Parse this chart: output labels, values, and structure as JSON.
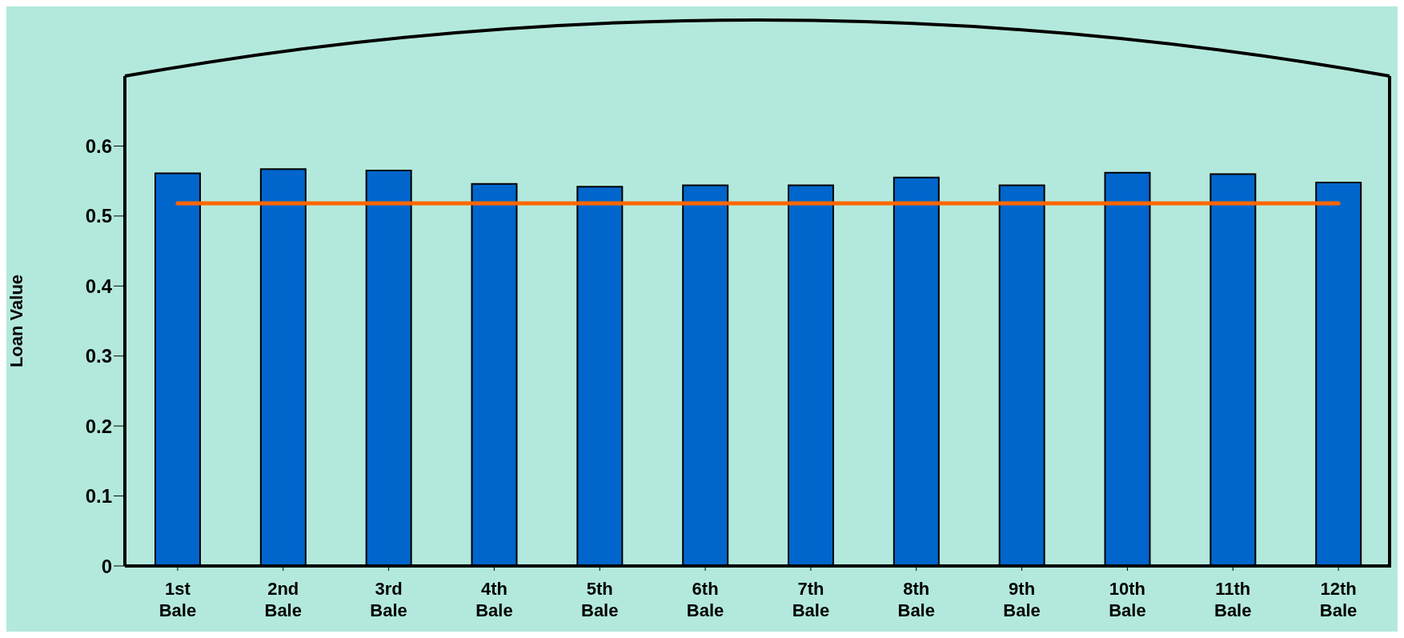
{
  "chart_data": {
    "type": "bar",
    "ylabel": "Loan Value",
    "categories": [
      "1st Bale",
      "2nd Bale",
      "3rd Bale",
      "4th Bale",
      "5th Bale",
      "6th Bale",
      "7th Bale",
      "8th Bale",
      "9th Bale",
      "10th Bale",
      "11th Bale",
      "12th Bale"
    ],
    "series": [
      {
        "color": "#0066cc",
        "values": [
          0.561,
          0.567,
          0.565,
          0.546,
          0.542,
          0.544,
          0.544,
          0.555,
          0.544,
          0.562,
          0.56,
          0.548
        ]
      },
      {
        "type": "line",
        "color": "#ff6600",
        "values": [
          0.518,
          0.518,
          0.518,
          0.518,
          0.518,
          0.518,
          0.518,
          0.518,
          0.518,
          0.518,
          0.518,
          0.518
        ]
      }
    ],
    "ylim": [
      0,
      0.7
    ],
    "yticks": [
      0,
      0.1,
      0.2,
      0.3,
      0.4,
      0.5,
      0.6
    ],
    "grid": false,
    "legend": false,
    "marker": "none"
  }
}
